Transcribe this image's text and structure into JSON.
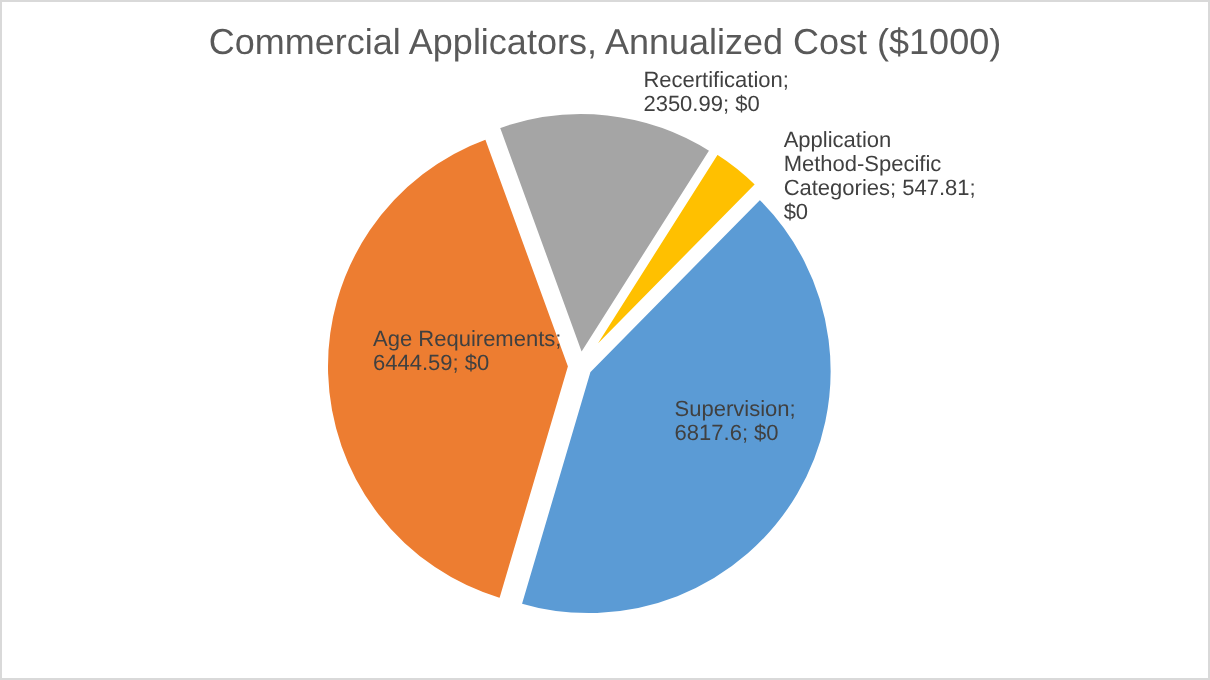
{
  "chart_data": {
    "type": "pie",
    "title": "Commercial Applicators, Annualized Cost ($1000)",
    "categories": [
      "Recertification",
      "Application Method-Specific Categories",
      "Supervision",
      "Age Requirements"
    ],
    "values": [
      2350.99,
      547.81,
      6817.6,
      6444.59
    ],
    "colors": [
      "#a5a5a5",
      "#ffc000",
      "#5b9bd5",
      "#ed7d31"
    ],
    "value_labels": [
      "; 2350.99;  $0",
      "; 547.81; $0",
      "; 6817.6; $0",
      "; 6444.59;  $0"
    ]
  }
}
